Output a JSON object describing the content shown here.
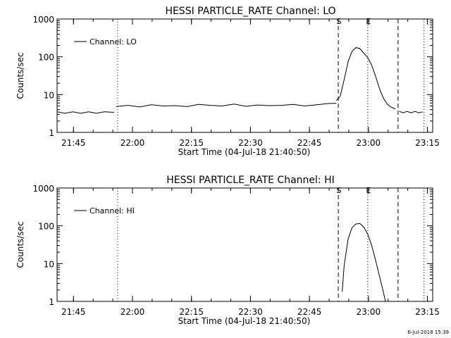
{
  "footer": {
    "timestamp": "6-Jul-2018 15:39"
  },
  "colors": {
    "foreground": "#000000",
    "background": "#ffffff"
  },
  "chart_data": [
    {
      "type": "line",
      "title": "HESSI PARTICLE_RATE Channel: LO",
      "xlabel": "Start Time (04-Jul-18 21:40:50)",
      "ylabel": "Counts/sec",
      "yscale": "log",
      "ylim": [
        1,
        1000
      ],
      "yticks": [
        1,
        10,
        100,
        1000
      ],
      "ytick_labels": [
        "1",
        "10",
        "100",
        "1000"
      ],
      "xlim_minutes": [
        0,
        95.5
      ],
      "xtick_labels": [
        "21:45",
        "22:00",
        "22:15",
        "22:30",
        "22:45",
        "23:00",
        "23:15"
      ],
      "xtick_minutes": [
        4.17,
        19.17,
        34.17,
        49.17,
        64.17,
        79.17,
        94.17
      ],
      "legend": {
        "label": "Channel: LO",
        "position": "top-left"
      },
      "markers": [
        {
          "label": "S",
          "minute": 71.5,
          "style": "dashed"
        },
        {
          "label": "E",
          "minute": 79.0,
          "style": "dotted"
        }
      ],
      "extra_lines": [
        {
          "minute": 15.4,
          "style": "dotted"
        },
        {
          "minute": 86.7,
          "style": "dashed"
        },
        {
          "minute": 93.3,
          "style": "dotted"
        }
      ],
      "series": [
        {
          "name": "Channel: LO",
          "segments": [
            {
              "x": [
                0,
                2,
                4,
                6,
                8,
                10,
                12,
                14.5
              ],
              "y": [
                3.5,
                3.2,
                3.5,
                3.2,
                3.5,
                3.2,
                3.5,
                3.4
              ]
            },
            {
              "x": [
                15,
                18,
                21,
                24,
                27,
                30,
                33,
                36,
                39,
                42,
                45,
                48,
                51,
                54,
                57,
                60,
                63,
                66,
                69,
                71
              ],
              "y": [
                4.8,
                5.2,
                4.7,
                5.4,
                5.0,
                5.1,
                4.8,
                5.5,
                5.2,
                5.0,
                5.6,
                4.9,
                5.3,
                5.1,
                5.2,
                5.5,
                5.0,
                5.4,
                5.8,
                5.9
              ]
            },
            {
              "x": [
                71,
                72,
                73,
                74,
                75,
                76,
                77,
                78,
                79,
                80,
                81,
                82,
                83,
                84,
                85,
                86
              ],
              "y": [
                7,
                9,
                25,
                75,
                140,
                175,
                165,
                125,
                95,
                60,
                30,
                14,
                8,
                5.5,
                4.6,
                4.2
              ]
            },
            {
              "x": [
                87,
                88,
                89,
                90,
                91,
                92,
                93
              ],
              "y": [
                3.6,
                3.3,
                3.6,
                3.3,
                3.6,
                3.3,
                3.5
              ]
            }
          ]
        }
      ]
    },
    {
      "type": "line",
      "title": "HESSI PARTICLE_RATE Channel: HI",
      "xlabel": "Start Time (04-Jul-18 21:40:50)",
      "ylabel": "Counts/sec",
      "yscale": "log",
      "ylim": [
        1,
        1000
      ],
      "yticks": [
        1,
        10,
        100,
        1000
      ],
      "ytick_labels": [
        "1",
        "10",
        "100",
        "1000"
      ],
      "xlim_minutes": [
        0,
        95.5
      ],
      "xtick_labels": [
        "21:45",
        "22:00",
        "22:15",
        "22:30",
        "22:45",
        "23:00",
        "23:15"
      ],
      "xtick_minutes": [
        4.17,
        19.17,
        34.17,
        49.17,
        64.17,
        79.17,
        94.17
      ],
      "legend": {
        "label": "Channel: HI",
        "position": "top-left"
      },
      "markers": [
        {
          "label": "S",
          "minute": 71.5,
          "style": "dashed"
        },
        {
          "label": "E",
          "minute": 79.0,
          "style": "dotted"
        }
      ],
      "extra_lines": [
        {
          "minute": 15.4,
          "style": "dotted"
        },
        {
          "minute": 86.7,
          "style": "dashed"
        },
        {
          "minute": 93.3,
          "style": "dotted"
        }
      ],
      "series": [
        {
          "name": "Channel: HI",
          "segments": [
            {
              "x": [
                72.5,
                73,
                74,
                75,
                76,
                77,
                78,
                79,
                80,
                81,
                82,
                83,
                83.5
              ],
              "y": [
                1.8,
                9,
                45,
                90,
                112,
                115,
                92,
                60,
                30,
                12,
                4.5,
                1.7,
                1.0
              ]
            }
          ]
        }
      ]
    }
  ]
}
